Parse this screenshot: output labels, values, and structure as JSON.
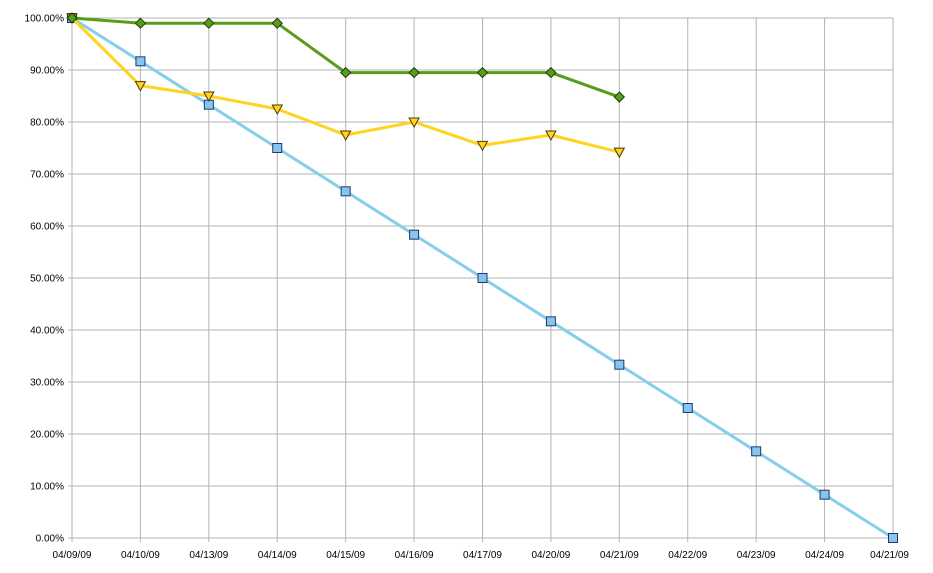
{
  "chart_data": {
    "type": "line",
    "categories": [
      "04/09/09",
      "04/10/09",
      "04/13/09",
      "04/14/09",
      "04/15/09",
      "04/16/09",
      "04/17/09",
      "04/20/09",
      "04/21/09",
      "04/22/09",
      "04/23/09",
      "04/24/09",
      "04/21/09"
    ],
    "y_tick_labels": [
      "0.00%",
      "10.00%",
      "20.00%",
      "30.00%",
      "40.00%",
      "50.00%",
      "60.00%",
      "70.00%",
      "80.00%",
      "90.00%",
      "100.00%"
    ],
    "ylim": [
      0,
      100
    ],
    "y_unit": "percent",
    "grid": true,
    "legend": "none",
    "series": [
      {
        "marker": "square",
        "color": "#87CEEB",
        "marker_fill": "#87C4EE",
        "values": [
          100,
          91.67,
          83.33,
          75,
          66.67,
          58.33,
          50,
          41.67,
          33.33,
          25,
          16.67,
          8.33,
          0
        ]
      },
      {
        "marker": "triangle-down",
        "color": "#FFD320",
        "marker_fill": "#FFD320",
        "values": [
          100,
          87,
          85,
          82.5,
          77.5,
          80,
          75.5,
          77.5,
          74.2,
          null,
          null,
          null,
          null
        ]
      },
      {
        "marker": "diamond",
        "color": "#579D1C",
        "marker_fill": "#579D1C",
        "values": [
          100,
          99,
          99,
          99,
          89.5,
          89.5,
          89.5,
          89.5,
          84.8,
          null,
          null,
          null,
          null
        ]
      }
    ]
  }
}
